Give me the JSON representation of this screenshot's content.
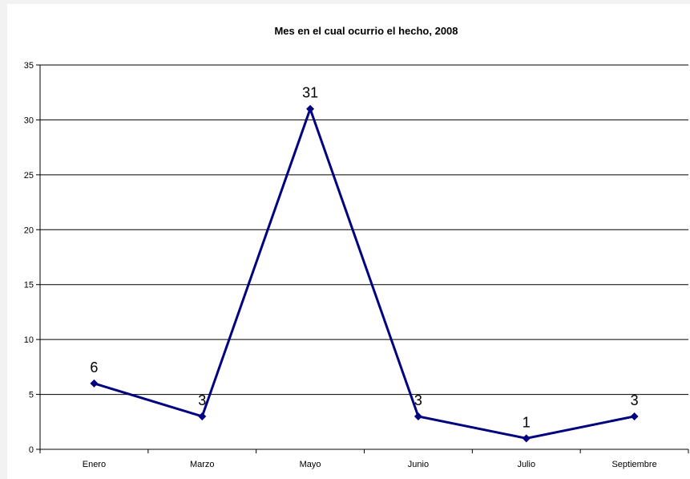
{
  "chart_data": {
    "type": "line",
    "title": "Mes en el cual ocurrio el hecho, 2008",
    "xlabel": "",
    "ylabel": "",
    "categories": [
      "Enero",
      "Marzo",
      "Mayo",
      "Junio",
      "Julio",
      "Septiembre"
    ],
    "series": [
      {
        "values": [
          6,
          3,
          31,
          3,
          1,
          3
        ]
      }
    ],
    "ylim": [
      0,
      35
    ],
    "yticks": [
      0,
      5,
      10,
      15,
      20,
      25,
      30,
      35
    ],
    "grid": true,
    "legend": "none",
    "data_labels": true,
    "colors": {
      "line": "#000080",
      "marker": "#000080",
      "grid": "#000000",
      "background": "#ffffff"
    }
  }
}
